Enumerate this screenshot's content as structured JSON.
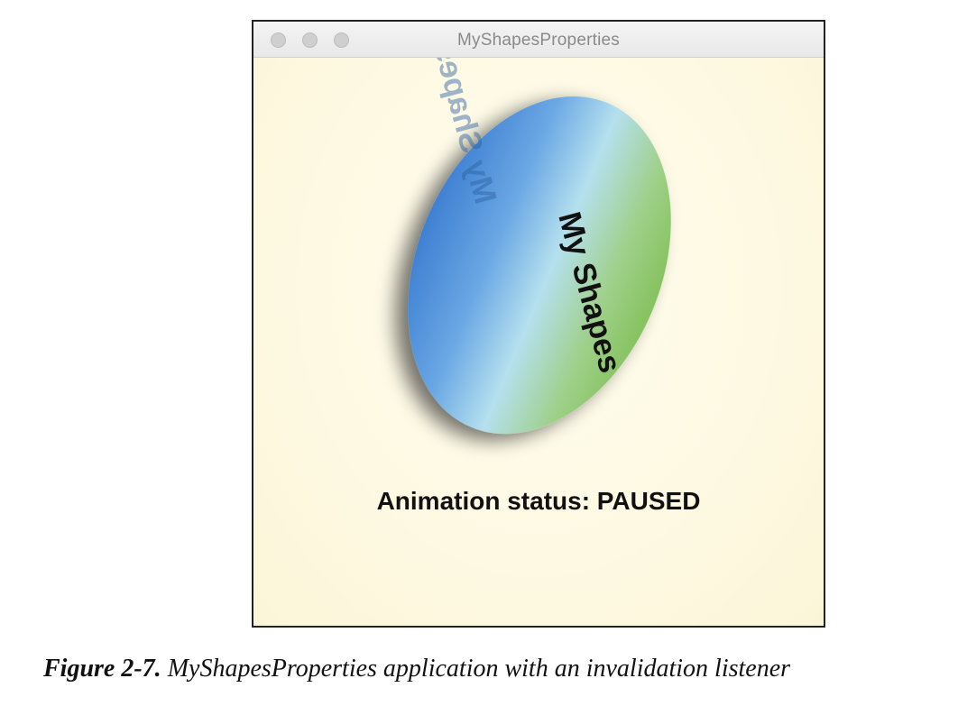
{
  "window": {
    "title": "MyShapesProperties",
    "shape_text": "My Shapes",
    "status_text": "Animation status: PAUSED"
  },
  "caption": {
    "label": "Figure 2-7.",
    "text": "MyShapesProperties application with an invalidation listener"
  },
  "colors": {
    "background": "#fdf9e3",
    "ellipse_blue": "#4a8fd8",
    "ellipse_light": "#a9d9ec",
    "ellipse_green": "#8cc66a",
    "title_text": "#8a8a8a"
  }
}
